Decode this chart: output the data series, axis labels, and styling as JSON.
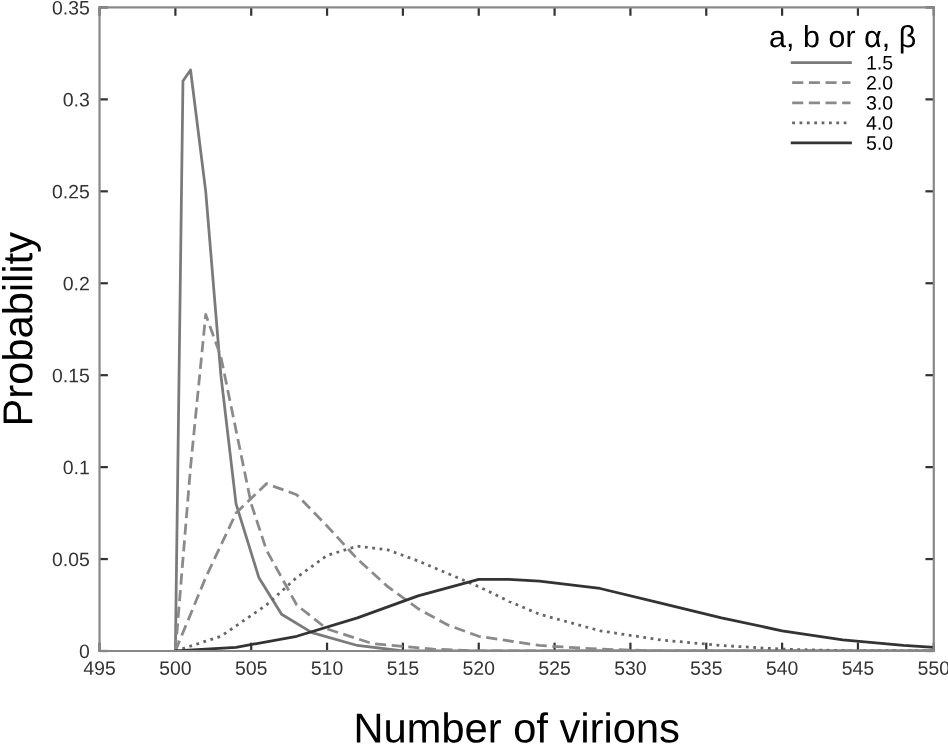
{
  "chart_data": {
    "type": "line",
    "xlabel": "Number of virions",
    "ylabel": "Probability",
    "legend_title": "a, b or α, β",
    "legend": "top right",
    "grid": false,
    "marker": "none",
    "xlim": [
      495,
      550
    ],
    "xticks": [
      495,
      500,
      505,
      510,
      515,
      520,
      525,
      530,
      535,
      540,
      545,
      550
    ],
    "ylim": [
      0,
      0.35
    ],
    "yticks": [
      0,
      0.05,
      0.1,
      0.15,
      0.2,
      0.25,
      0.3,
      0.35
    ],
    "series": [
      {
        "name": "1.5",
        "color": "#7a7a7a",
        "line_style": "solid",
        "x": [
          500,
          500.5,
          501,
          502,
          503,
          504,
          505.5,
          507,
          509,
          512,
          515,
          550
        ],
        "values": [
          0,
          0.31,
          0.316,
          0.25,
          0.15,
          0.08,
          0.04,
          0.02,
          0.01,
          0.003,
          0,
          0
        ]
      },
      {
        "name": "2.0",
        "color": "#8a8a8a",
        "line_style": "dashed",
        "x": [
          500,
          501,
          502,
          503,
          504,
          505,
          506,
          508,
          510,
          513,
          517,
          520,
          550
        ],
        "values": [
          0,
          0.1,
          0.183,
          0.16,
          0.12,
          0.08,
          0.055,
          0.025,
          0.012,
          0.004,
          0.001,
          0,
          0
        ]
      },
      {
        "name": "3.0",
        "color": "#8a8a8a",
        "line_style": "dashed",
        "x": [
          500,
          502,
          504,
          506,
          508,
          510,
          512,
          514,
          516,
          518,
          520,
          524,
          528,
          532,
          550
        ],
        "values": [
          0,
          0.04,
          0.075,
          0.091,
          0.085,
          0.068,
          0.05,
          0.035,
          0.023,
          0.014,
          0.008,
          0.003,
          0.001,
          0,
          0
        ]
      },
      {
        "name": "4.0",
        "color": "#666666",
        "line_style": "dotted",
        "x": [
          500,
          503,
          506,
          508,
          510,
          512,
          514,
          516,
          518,
          520,
          522,
          524,
          528,
          532,
          536,
          540,
          545,
          550
        ],
        "values": [
          0,
          0.008,
          0.025,
          0.04,
          0.052,
          0.057,
          0.055,
          0.049,
          0.042,
          0.035,
          0.027,
          0.02,
          0.011,
          0.006,
          0.003,
          0.001,
          0,
          0
        ]
      },
      {
        "name": "5.0",
        "color": "#333333",
        "line_style": "solid",
        "x": [
          500,
          504,
          508,
          512,
          516,
          520,
          522,
          524,
          528,
          532,
          536,
          540,
          544,
          548,
          550
        ],
        "values": [
          0,
          0.002,
          0.008,
          0.018,
          0.03,
          0.039,
          0.039,
          0.038,
          0.034,
          0.026,
          0.018,
          0.011,
          0.006,
          0.003,
          0.002
        ]
      }
    ]
  }
}
